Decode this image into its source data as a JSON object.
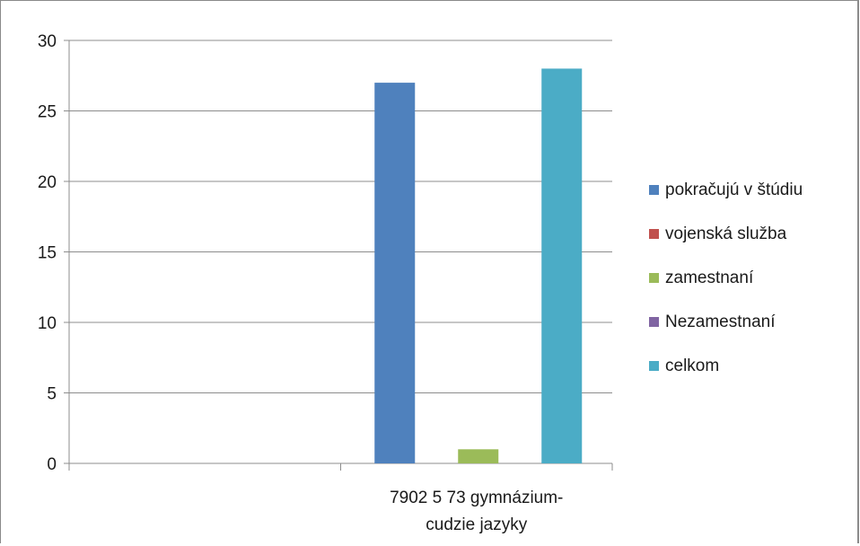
{
  "chart_data": {
    "type": "bar",
    "categories": [
      "7902 5 73 gymnázium-cudzie jazyky"
    ],
    "category_lines": [
      "7902 5 73 gymnázium-",
      "cudzie jazyky"
    ],
    "series": [
      {
        "name": "pokračujú v štúdiu",
        "values": [
          27
        ],
        "color": "#4F81BD"
      },
      {
        "name": "vojenská služba",
        "values": [
          0
        ],
        "color": "#C0504D"
      },
      {
        "name": "zamestnaní",
        "values": [
          1
        ],
        "color": "#9BBB59"
      },
      {
        "name": "Nezamestnaní",
        "values": [
          0
        ],
        "color": "#8064A2"
      },
      {
        "name": "celkom",
        "values": [
          28
        ],
        "color": "#4BACC6"
      }
    ],
    "yticks": [
      "0",
      "5",
      "10",
      "15",
      "20",
      "25",
      "30"
    ],
    "ylim": [
      0,
      30
    ],
    "title": "",
    "xlabel": "",
    "ylabel": "",
    "grid": true,
    "legend_position": "right"
  }
}
